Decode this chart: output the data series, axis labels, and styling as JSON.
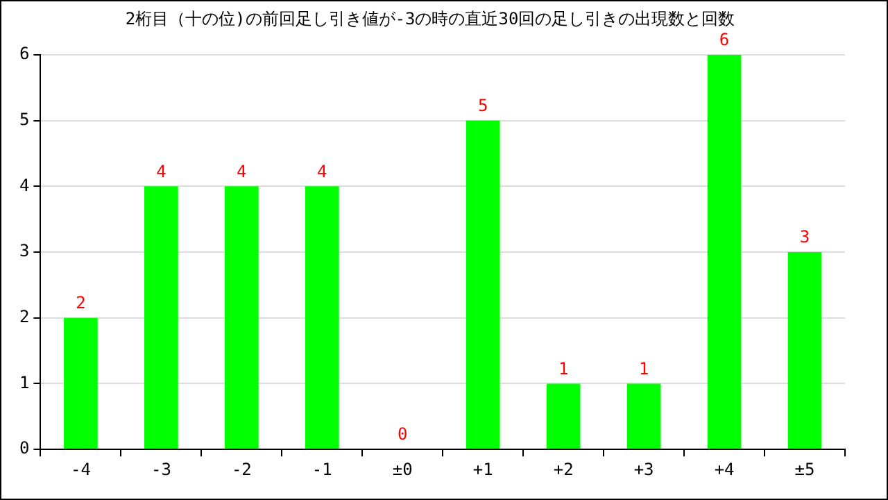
{
  "chart_data": {
    "type": "bar",
    "title": "2桁目（十の位)の前回足し引き値が-3の時の直近30回の足し引きの出現数と回数",
    "categories": [
      "-4",
      "-3",
      "-2",
      "-1",
      "±0",
      "+1",
      "+2",
      "+3",
      "+4",
      "±5"
    ],
    "values": [
      2,
      4,
      4,
      4,
      0,
      5,
      1,
      1,
      6,
      3
    ],
    "color": "#00ff00",
    "ylim": [
      0,
      6
    ],
    "yticks": [
      0,
      1,
      2,
      3,
      4,
      5,
      6
    ],
    "grid": "y",
    "legend": false,
    "data_labels": true
  }
}
